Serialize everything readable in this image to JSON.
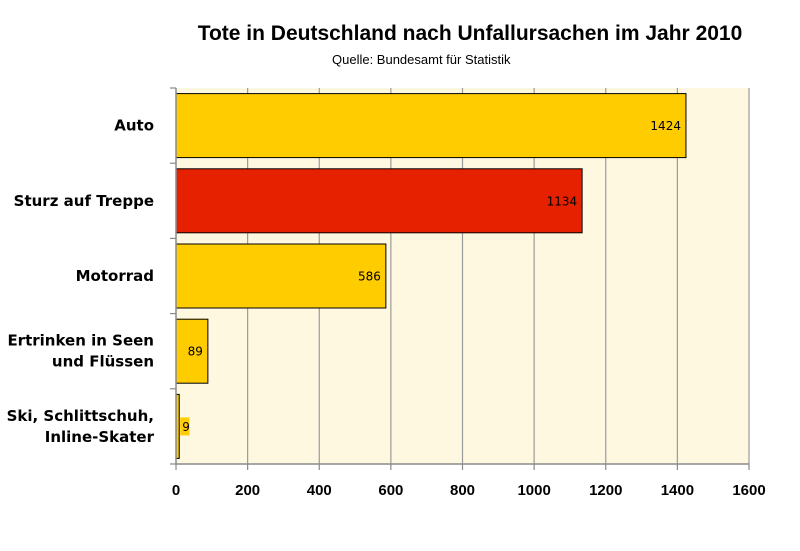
{
  "chart_data": {
    "type": "bar",
    "orientation": "horizontal",
    "title": "Tote in Deutschland nach Unfallursachen im Jahr 2010",
    "subtitle": "Quelle: Bundesamt für Statistik",
    "categories": [
      [
        "Auto"
      ],
      [
        "Sturz auf Treppe"
      ],
      [
        "Motorrad"
      ],
      [
        "Ertrinken in Seen",
        "und Flüssen"
      ],
      [
        "Ski, Schlittschuh,",
        "Inline-Skater"
      ]
    ],
    "values": [
      1424,
      1134,
      586,
      89,
      9
    ],
    "data_labels": [
      "1424",
      "1134",
      "586",
      "89",
      "9"
    ],
    "bar_colors": [
      "#ffcc00",
      "#e62100",
      "#ffcc00",
      "#ffcc00",
      "#ffcc00"
    ],
    "xlim": [
      0,
      1600
    ],
    "xticks": [
      0,
      200,
      400,
      600,
      800,
      1000,
      1200,
      1400,
      1600
    ],
    "grid": true,
    "plot_background": "#fff8e1",
    "xlabel": "",
    "ylabel": ""
  }
}
